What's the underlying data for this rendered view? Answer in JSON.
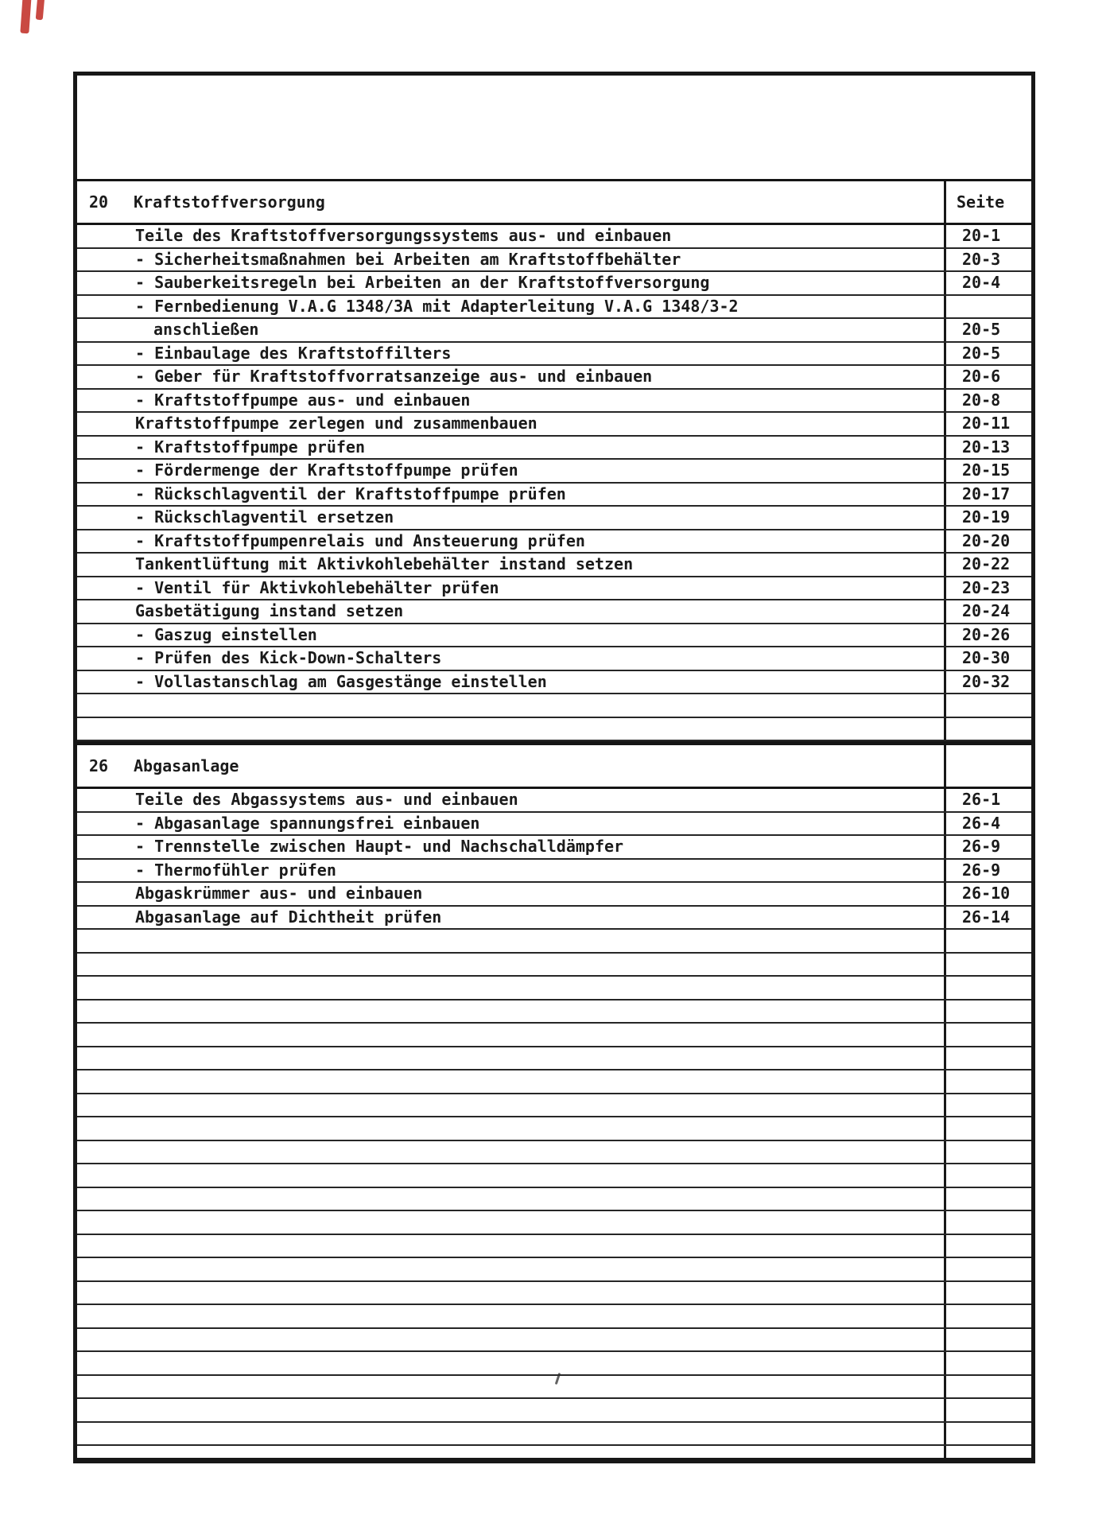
{
  "colors": {
    "paper": "#ffffff",
    "ink": "#1b1b1b",
    "rule_line": "#262626",
    "border": "#171717",
    "scan_mark_red": "#c43a32"
  },
  "scan_artifacts": {
    "corner_marks_count": 2,
    "corner_marks_color": "#c43a32"
  },
  "sections": [
    {
      "number": "20",
      "title": "Kraftstoffversorgung",
      "page_header": "Seite",
      "empty_rows": 2,
      "rows": [
        {
          "text": "Teile des Kraftstoffversorgungssystems aus- und einbauen",
          "style": "plain",
          "page": "20-1"
        },
        {
          "text": "- Sicherheitsmaßnahmen bei Arbeiten am Kraftstoffbehälter",
          "style": "plain",
          "page": "20-3"
        },
        {
          "text": "- Sauberkeitsregeln bei Arbeiten an der Kraftstoffversorgung",
          "style": "plain",
          "page": "20-4"
        },
        {
          "text": "- Fernbedienung V.A.G 1348/3A mit Adapterleitung V.A.G 1348/3-2",
          "style": "plain",
          "page": ""
        },
        {
          "text": "anschließen",
          "style": "cont",
          "page": "20-5"
        },
        {
          "text": "- Einbaulage des Kraftstoffilters",
          "style": "plain",
          "page": "20-5"
        },
        {
          "text": "- Geber für Kraftstoffvorratsanzeige aus- und einbauen",
          "style": "plain",
          "page": "20-6"
        },
        {
          "text": "- Kraftstoffpumpe aus- und einbauen",
          "style": "plain",
          "page": "20-8"
        },
        {
          "text": "Kraftstoffpumpe zerlegen und zusammenbauen",
          "style": "plain",
          "page": "20-11"
        },
        {
          "text": "- Kraftstoffpumpe prüfen",
          "style": "plain",
          "page": "20-13"
        },
        {
          "text": "- Fördermenge der Kraftstoffpumpe prüfen",
          "style": "plain",
          "page": "20-15"
        },
        {
          "text": "- Rückschlagventil der Kraftstoffpumpe prüfen",
          "style": "plain",
          "page": "20-17"
        },
        {
          "text": "- Rückschlagventil ersetzen",
          "style": "plain",
          "page": "20-19"
        },
        {
          "text": "- Kraftstoffpumpenrelais und Ansteuerung prüfen",
          "style": "plain",
          "page": "20-20"
        },
        {
          "text": "Tankentlüftung mit Aktivkohlebehälter instand setzen",
          "style": "plain",
          "page": "20-22"
        },
        {
          "text": "- Ventil für Aktivkohlebehälter prüfen",
          "style": "plain",
          "page": "20-23"
        },
        {
          "text": "Gasbetätigung instand setzen",
          "style": "plain",
          "page": "20-24"
        },
        {
          "text": "- Gaszug einstellen",
          "style": "plain",
          "page": "20-26"
        },
        {
          "text": "- Prüfen des Kick-Down-Schalters",
          "style": "plain",
          "page": "20-30"
        },
        {
          "text": "- Vollastanschlag am Gasgestänge einstellen",
          "style": "plain",
          "page": "20-32"
        }
      ]
    },
    {
      "number": "26",
      "title": "Abgasanlage",
      "page_header": "",
      "empty_rows": 23,
      "rows": [
        {
          "text": "Teile des Abgassystems aus- und einbauen",
          "style": "plain",
          "page": "26-1"
        },
        {
          "text": "- Abgasanlage spannungsfrei einbauen",
          "style": "plain",
          "page": "26-4"
        },
        {
          "text": "- Trennstelle zwischen Haupt- und Nachschalldämpfer",
          "style": "plain",
          "page": "26-9"
        },
        {
          "text": "- Thermofühler prüfen",
          "style": "plain",
          "page": "26-9"
        },
        {
          "text": "Abgaskrümmer aus- und einbauen",
          "style": "plain",
          "page": "26-10"
        },
        {
          "text": "Abgasanlage auf Dichtheit prüfen",
          "style": "plain",
          "page": "26-14"
        }
      ]
    }
  ]
}
